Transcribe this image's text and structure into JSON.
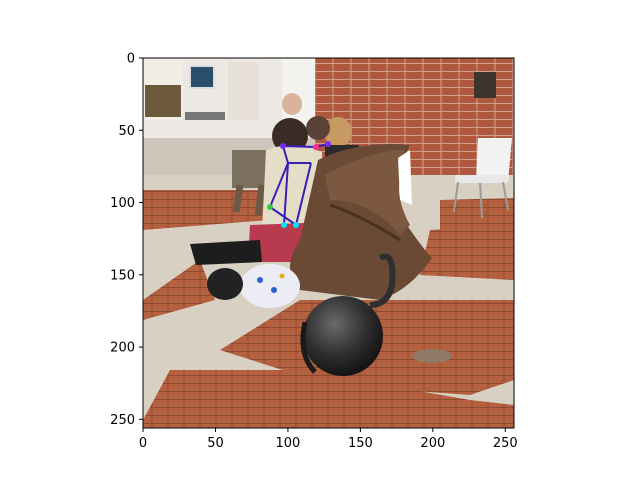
{
  "axes": {
    "x_ticks": [
      0,
      50,
      100,
      150,
      200,
      250
    ],
    "y_ticks": [
      0,
      50,
      100,
      150,
      200,
      250
    ],
    "xlim": [
      0,
      256
    ],
    "ylim": [
      256,
      0
    ]
  },
  "image": {
    "subject": "photo"
  },
  "overlay": {
    "color": "#3a1fb5",
    "keypoint_colors": [
      "#2ecc40",
      "#00e5ff",
      "#7a2cff",
      "#ff2d95"
    ]
  }
}
